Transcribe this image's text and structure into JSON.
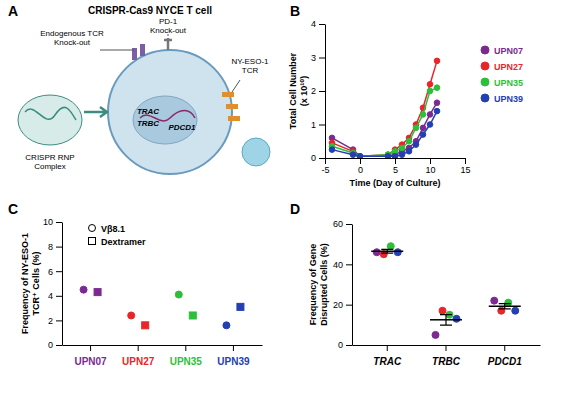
{
  "diagram": {
    "panel": "A",
    "title": "CRISPR-Cas9 NYCE T cell",
    "tcr_knockout": [
      "Endogenous TCR",
      "Knock-out"
    ],
    "pd1_knockout": [
      "PD-1",
      "Knock-out"
    ],
    "transgene": [
      "NY-ESO-1",
      "TCR"
    ],
    "rnp": [
      "CRISPR RNP",
      "Complex"
    ],
    "genes": [
      "TRAC",
      "TRBC",
      "PDCD1"
    ]
  },
  "chart_data": [
    {
      "panel": "B",
      "type": "line",
      "xlabel": "Time (Day of Culture)",
      "ylabel": [
        "Total Cell Number",
        "(x 10¹⁰)"
      ],
      "x": [
        -4,
        -1,
        0,
        4,
        5,
        6,
        7,
        8,
        9,
        10,
        11
      ],
      "xlim": [
        -5,
        15
      ],
      "xticks": [
        -5,
        0,
        5,
        10,
        15
      ],
      "ylim": [
        0,
        4
      ],
      "yticks": [
        0,
        1,
        2,
        3,
        4
      ],
      "legend": "right",
      "marker": "circle",
      "series": [
        {
          "name": "UPN07",
          "color": "#7b2a92",
          "values": [
            0.6,
            0.25,
            0.05,
            0.05,
            0.1,
            0.2,
            0.3,
            0.5,
            0.9,
            1.3,
            1.65
          ]
        },
        {
          "name": "UPN27",
          "color": "#e8262a",
          "values": [
            0.45,
            0.2,
            0.05,
            0.1,
            0.25,
            0.4,
            0.6,
            1.0,
            1.5,
            2.2,
            2.9
          ]
        },
        {
          "name": "UPN35",
          "color": "#2dbf3a",
          "values": [
            0.35,
            0.15,
            0.05,
            0.1,
            0.2,
            0.3,
            0.5,
            0.9,
            1.3,
            2.0,
            2.1
          ]
        },
        {
          "name": "UPN39",
          "color": "#2340b3",
          "values": [
            0.25,
            0.1,
            0.05,
            0.05,
            0.05,
            0.1,
            0.2,
            0.4,
            0.7,
            1.0,
            1.4
          ]
        }
      ]
    },
    {
      "panel": "C",
      "type": "scatter",
      "ylabel": [
        "Frequency of NY-ESO-1",
        "TCR⁺ Cells (%)"
      ],
      "categories": [
        "UPN07",
        "UPN27",
        "UPN35",
        "UPN39"
      ],
      "colors": [
        "#7b2a92",
        "#e8262a",
        "#2dbf3a",
        "#2340b3"
      ],
      "ylim": [
        0,
        10
      ],
      "yticks": [
        0,
        2,
        4,
        6,
        8,
        10
      ],
      "legend": "top-left",
      "series": [
        {
          "name": "Vβ8.1",
          "marker": "circle",
          "values": [
            4.5,
            2.4,
            4.1,
            1.6
          ]
        },
        {
          "name": "Dextramer",
          "marker": "square",
          "values": [
            4.3,
            1.6,
            2.4,
            3.1
          ]
        }
      ]
    },
    {
      "panel": "D",
      "type": "scatter",
      "ylabel": [
        "Frequency of Gene",
        "Disrupted Cells (%)"
      ],
      "categories": [
        "TRAC",
        "TRBC",
        "PDCD1"
      ],
      "ylim": [
        0,
        60
      ],
      "yticks": [
        0,
        20,
        40,
        60
      ],
      "marker": "circle",
      "series": [
        {
          "color": "#7b2a92",
          "values": [
            46,
            5,
            22
          ]
        },
        {
          "color": "#e8262a",
          "values": [
            45,
            17,
            17
          ]
        },
        {
          "color": "#2dbf3a",
          "values": [
            49,
            15,
            21
          ]
        },
        {
          "color": "#2340b3",
          "values": [
            46,
            13,
            17
          ]
        }
      ],
      "mean": [
        46.5,
        12.5,
        19.25
      ],
      "error": [
        0.9,
        2.6,
        1.3
      ]
    }
  ]
}
